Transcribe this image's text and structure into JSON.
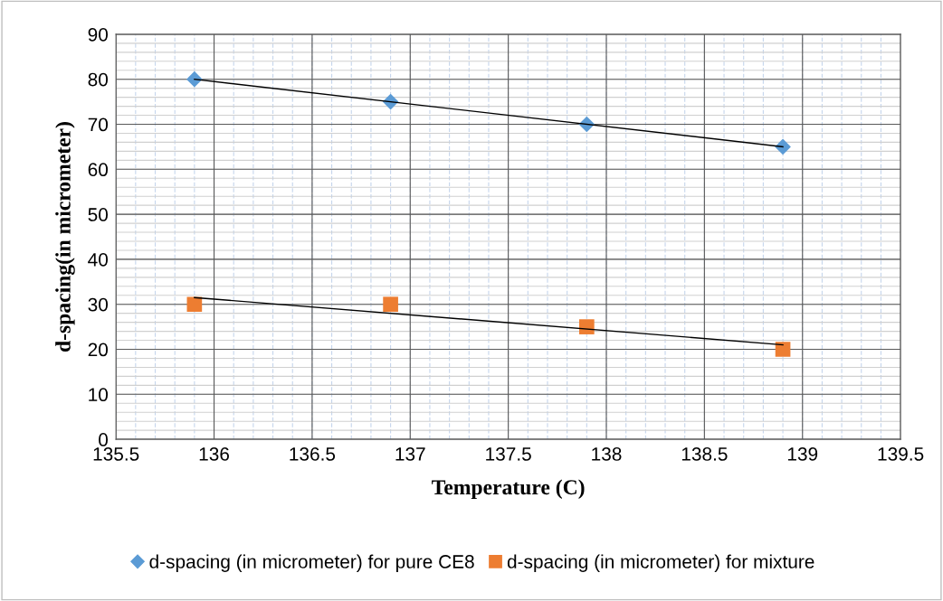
{
  "chart_data": {
    "type": "scatter",
    "xlabel": "Temperature (C)",
    "ylabel": "d-spacing(in micrometer)",
    "xlim": [
      135.5,
      139.5
    ],
    "xticks": [
      135.5,
      136,
      136.5,
      137,
      137.5,
      138,
      138.5,
      139,
      139.5
    ],
    "ylim": [
      0,
      90
    ],
    "yticks": [
      0,
      10,
      20,
      30,
      40,
      50,
      60,
      70,
      80,
      90
    ],
    "grid": true,
    "legend": "bottom",
    "series": [
      {
        "name": "d-spacing (in micrometer) for pure CE8",
        "marker": "diamond",
        "color": "#5b9bd5",
        "x": [
          135.9,
          136.9,
          137.9,
          138.9
        ],
        "values": [
          80,
          75,
          70,
          65
        ]
      },
      {
        "name": "d-spacing (in micrometer) for mixture",
        "marker": "square",
        "color": "#ed7d31",
        "x": [
          135.9,
          136.9,
          137.9,
          138.9
        ],
        "values": [
          30,
          30,
          25,
          20
        ]
      },
      {
        "type": "line",
        "marker": "none",
        "color": "#000000",
        "x": [
          135.9,
          138.9
        ],
        "values": [
          80,
          65
        ]
      },
      {
        "type": "line",
        "marker": "none",
        "color": "#000000",
        "x": [
          135.9,
          138.9
        ],
        "values": [
          31.5,
          21
        ]
      }
    ]
  }
}
